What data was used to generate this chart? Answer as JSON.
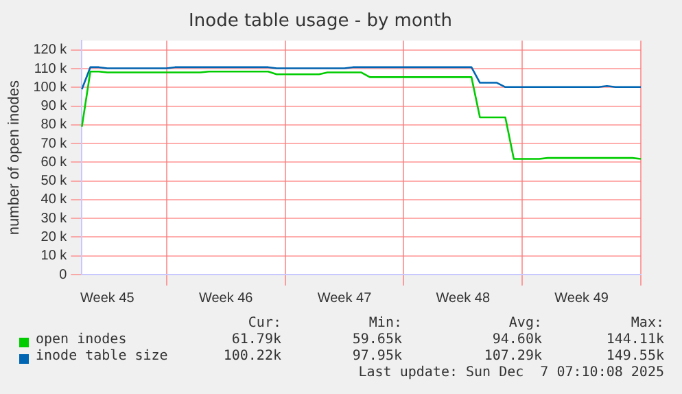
{
  "chart_data": {
    "type": "line",
    "title": "Inode table usage - by month",
    "ylabel": "number of open inodes",
    "categories": [
      null,
      null,
      null,
      "Week 45",
      null,
      null,
      null,
      null,
      null,
      null,
      null,
      null,
      null,
      null,
      null,
      null,
      null,
      "Week 46",
      null,
      null,
      null,
      null,
      null,
      null,
      null,
      null,
      null,
      null,
      null,
      null,
      null,
      "Week 47",
      null,
      null,
      null,
      null,
      null,
      null,
      null,
      null,
      null,
      null,
      null,
      null,
      null,
      "Week 48",
      null,
      null,
      null,
      null,
      null,
      null,
      null,
      null,
      null,
      null,
      null,
      null,
      null,
      "Week 49",
      null,
      null,
      null,
      null,
      null,
      null,
      null
    ],
    "ylim": [
      0,
      125
    ],
    "yticks": [
      {
        "value": 0,
        "label": "0"
      },
      {
        "value": 10,
        "label": "10 k"
      },
      {
        "value": 20,
        "label": "20 k"
      },
      {
        "value": 30,
        "label": "30 k"
      },
      {
        "value": 40,
        "label": "40 k"
      },
      {
        "value": 50,
        "label": "50 k"
      },
      {
        "value": 60,
        "label": "60 k"
      },
      {
        "value": 70,
        "label": "70 k"
      },
      {
        "value": 80,
        "label": "80 k"
      },
      {
        "value": 90,
        "label": "90 k"
      },
      {
        "value": 100,
        "label": "100 k"
      },
      {
        "value": 110,
        "label": "110 k"
      },
      {
        "value": 120,
        "label": "120 k"
      }
    ],
    "grid": true,
    "legend": "bottom",
    "marker": "none",
    "line_style": "solid",
    "series": [
      {
        "name": "open inodes",
        "color": "#00cc00",
        "values": [
          79,
          108.5,
          108.5,
          108,
          108,
          108,
          108,
          108,
          108,
          108,
          108,
          108,
          108,
          108,
          108,
          108.5,
          108.5,
          108.5,
          108.5,
          108.5,
          108.5,
          108.5,
          108.5,
          107,
          107,
          107,
          107,
          107,
          107,
          108,
          108,
          108,
          108,
          108,
          105.5,
          105.5,
          105.5,
          105.5,
          105.5,
          105.5,
          105.5,
          105.5,
          105.5,
          105.5,
          105.5,
          105.5,
          105.5,
          84,
          84,
          84,
          84,
          61.8,
          61.8,
          61.8,
          61.8,
          62.3,
          62.3,
          62.3,
          62.3,
          62.3,
          62.3,
          62.3,
          62.3,
          62.3,
          62.3,
          62.3,
          61.8
        ]
      },
      {
        "name": "inode table size",
        "color": "#0066b3",
        "values": [
          99,
          110.8,
          110.8,
          110.2,
          110.2,
          110.2,
          110.2,
          110.2,
          110.2,
          110.2,
          110.2,
          110.8,
          110.8,
          110.8,
          110.8,
          110.8,
          110.8,
          110.8,
          110.8,
          110.8,
          110.8,
          110.8,
          110.8,
          110.2,
          110.2,
          110.2,
          110.2,
          110.2,
          110.2,
          110.2,
          110.2,
          110.2,
          110.8,
          110.8,
          110.8,
          110.8,
          110.8,
          110.8,
          110.8,
          110.8,
          110.8,
          110.8,
          110.8,
          110.8,
          110.8,
          110.8,
          110.8,
          102.5,
          102.5,
          102.5,
          100.2,
          100.2,
          100.2,
          100.2,
          100.2,
          100.2,
          100.2,
          100.2,
          100.2,
          100.2,
          100.2,
          100.2,
          100.8,
          100.2,
          100.2,
          100.2,
          100.2
        ]
      }
    ],
    "annotations": [
      "Cur:",
      "Min:",
      "Avg:",
      "Max:",
      "61.79k",
      "59.65k",
      "94.60k",
      "144.11k",
      "100.22k",
      "97.95k",
      "107.29k",
      "149.55k",
      "Last update: Sun Dec  7 07:10:08 2025"
    ]
  }
}
